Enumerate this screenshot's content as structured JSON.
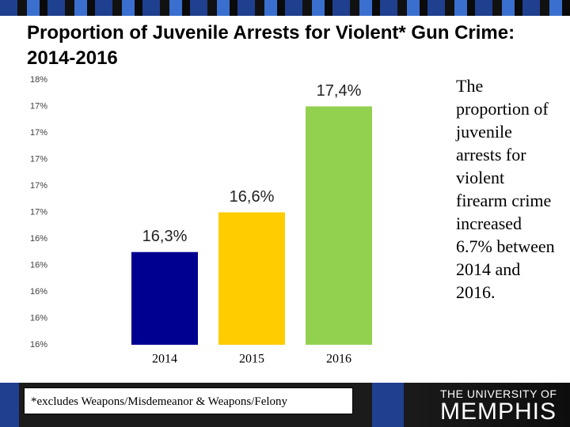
{
  "title": "Proportion of Juvenile Arrests for Violent* Gun Crime: 2014-2016",
  "chart_data": {
    "type": "bar",
    "categories": [
      "2014",
      "2015",
      "2016"
    ],
    "values": [
      16.3,
      16.6,
      17.4
    ],
    "value_labels": [
      "16,3%",
      "16,6%",
      "17,4%"
    ],
    "colors": [
      "#000090",
      "#ffcc00",
      "#92d050"
    ],
    "ylim": [
      15.6,
      17.6
    ],
    "yticks": [
      {
        "value": 15.6,
        "label": "16%"
      },
      {
        "value": 15.8,
        "label": "16%"
      },
      {
        "value": 16.0,
        "label": "16%"
      },
      {
        "value": 16.2,
        "label": "16%"
      },
      {
        "value": 16.4,
        "label": "16%"
      },
      {
        "value": 16.6,
        "label": "17%"
      },
      {
        "value": 16.8,
        "label": "17%"
      },
      {
        "value": 17.0,
        "label": "17%"
      },
      {
        "value": 17.2,
        "label": "17%"
      },
      {
        "value": 17.4,
        "label": "17%"
      },
      {
        "value": 17.6,
        "label": "18%"
      }
    ],
    "grid": false
  },
  "note": "The proportion of juvenile arrests for violent firearm crime increased 6.7% between 2014 and 2016.",
  "footnote": "*excludes Weapons/Misdemeanor & Weapons/Felony",
  "logo": {
    "line1": "THE UNIVERSITY OF",
    "line2": "MEMPHIS"
  }
}
